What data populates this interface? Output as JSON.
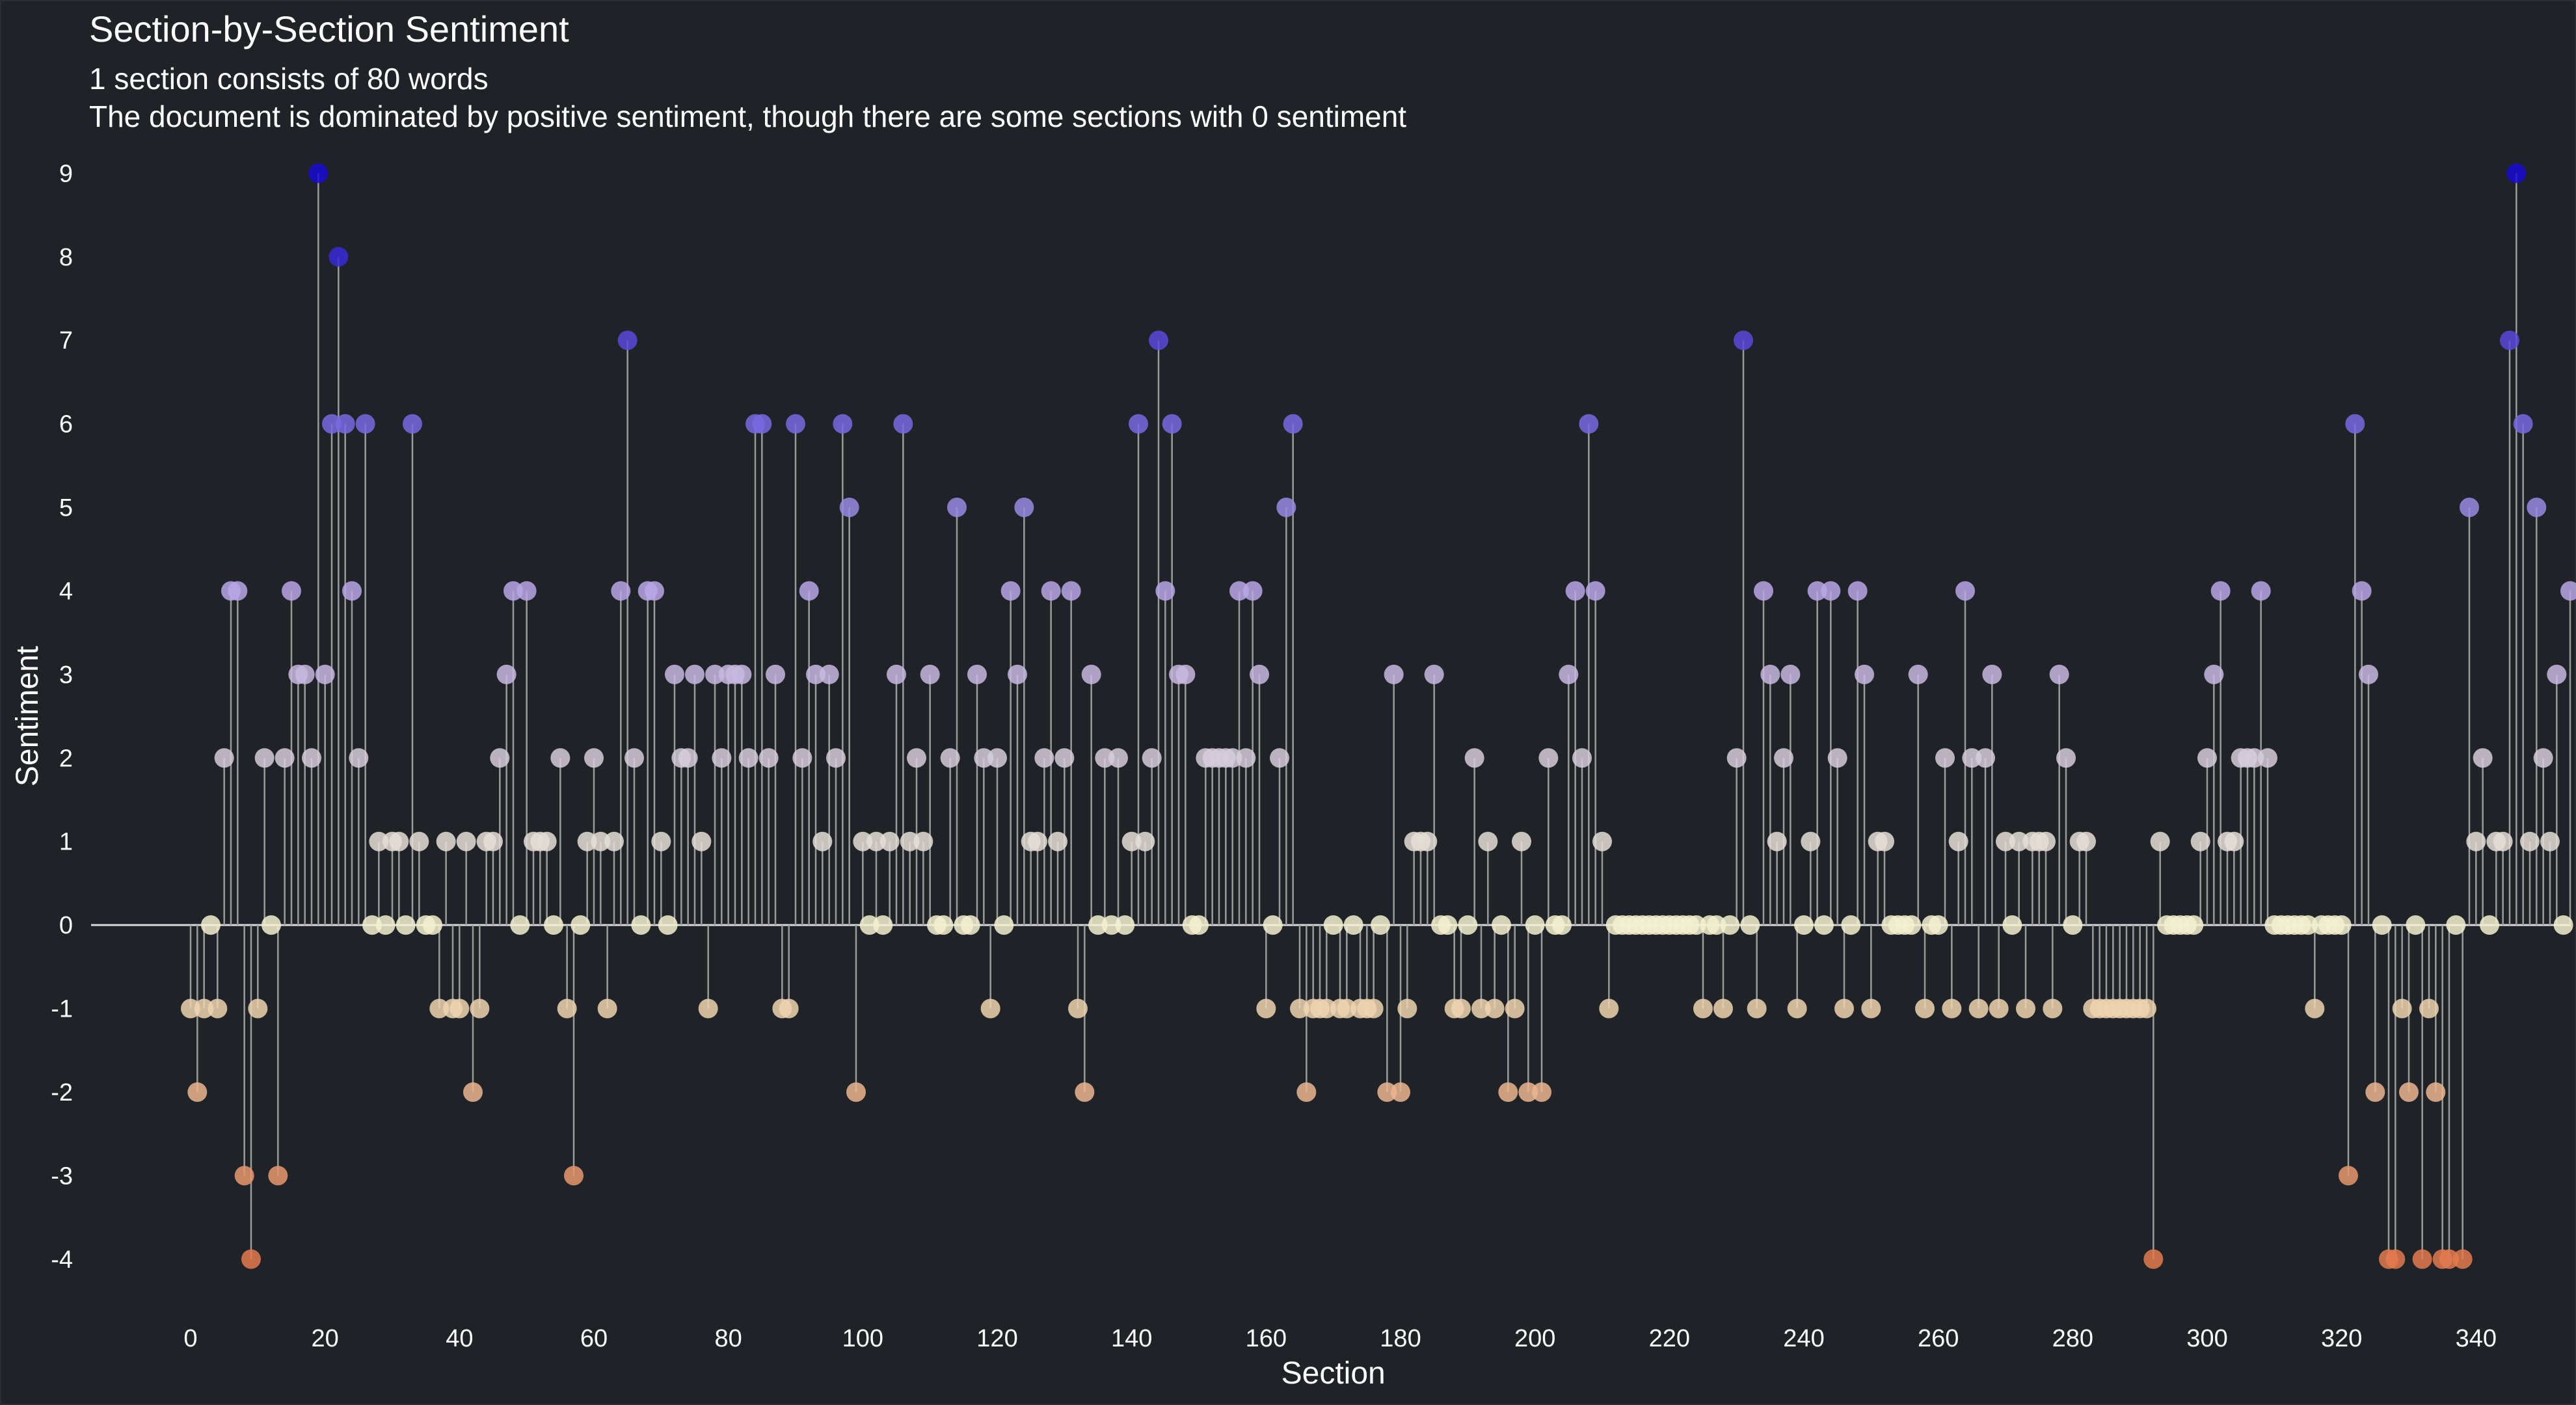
{
  "chart_data": {
    "type": "lollipop",
    "title": "Section-by-Section Sentiment",
    "subtitle_lines": [
      "1 section consists of 80 words",
      "The document is dominated by positive sentiment, though there are some sections with 0 sentiment"
    ],
    "xlabel": "Section",
    "ylabel": "Sentiment",
    "xlim": [
      -9,
      351
    ],
    "ylim": [
      -4.5,
      9.4
    ],
    "x_ticks": [
      0,
      20,
      40,
      60,
      80,
      100,
      120,
      140,
      160,
      180,
      200,
      220,
      240,
      260,
      280,
      300,
      320,
      340
    ],
    "y_ticks": [
      -4,
      -3,
      -2,
      -1,
      0,
      1,
      2,
      3,
      4,
      5,
      6,
      7,
      8,
      9
    ],
    "grid": false,
    "legend": "none",
    "colors": {
      "background": "#1f2226",
      "text": "#ffffff",
      "zero_line": "#d9d9d9",
      "stem": "#9a9a9a",
      "color_max": "#1a0ad6",
      "color_positive_low": "#b9a7e6",
      "color_zero": "#f3f0d0",
      "color_min": "#e37a4f"
    },
    "sentiment": [
      -1,
      -2,
      -1,
      0,
      -1,
      2,
      4,
      4,
      -3,
      -4,
      -1,
      2,
      0,
      -3,
      2,
      4,
      3,
      3,
      2,
      9,
      3,
      6,
      8,
      6,
      4,
      2,
      6,
      0,
      1,
      0,
      1,
      1,
      0,
      6,
      1,
      0,
      0,
      -1,
      1,
      -1,
      -1,
      1,
      -2,
      -1,
      1,
      1,
      2,
      3,
      4,
      0,
      4,
      1,
      1,
      1,
      0,
      2,
      -1,
      -3,
      0,
      1,
      2,
      1,
      -1,
      1,
      4,
      7,
      2,
      0,
      4,
      4,
      1,
      0,
      3,
      2,
      2,
      3,
      1,
      -1,
      3,
      2,
      3,
      3,
      3,
      2,
      6,
      6,
      2,
      3,
      -1,
      -1,
      6,
      2,
      4,
      3,
      1,
      3,
      2,
      6,
      5,
      -2,
      1,
      0,
      1,
      0,
      1,
      3,
      6,
      1,
      2,
      1,
      3,
      0,
      0,
      2,
      5,
      0,
      0,
      3,
      2,
      -1,
      2,
      0,
      4,
      3,
      5,
      1,
      1,
      2,
      4,
      1,
      2,
      4,
      -1,
      -2,
      3,
      0,
      2,
      0,
      2,
      0,
      1,
      6,
      1,
      2,
      7,
      4,
      6,
      3,
      3,
      0,
      0,
      2,
      2,
      2,
      2,
      2,
      4,
      2,
      4,
      3,
      -1,
      0,
      2,
      5,
      6,
      -1,
      -2,
      -1,
      -1,
      -1,
      0,
      -1,
      -1,
      0,
      -1,
      -1,
      -1,
      0,
      -2,
      3,
      -2,
      -1,
      1,
      1,
      1,
      3,
      0,
      0,
      -1,
      -1,
      0,
      2,
      -1,
      1,
      -1,
      0,
      -2,
      -1,
      1,
      -2,
      0,
      -2,
      2,
      0,
      0,
      3,
      4,
      2,
      6,
      4,
      1,
      -1,
      0,
      0,
      0,
      0,
      0,
      0,
      0,
      0,
      0,
      0,
      0,
      0,
      0,
      -1,
      0,
      0,
      -1,
      0,
      2,
      7,
      0,
      -1,
      4,
      3,
      1,
      2,
      3,
      -1,
      0,
      1,
      4,
      0,
      4,
      2,
      -1,
      0,
      4,
      3,
      -1,
      1,
      1,
      0,
      0,
      0,
      0,
      3,
      -1,
      0,
      0,
      2,
      -1,
      1,
      4,
      2,
      -1,
      2,
      3,
      -1,
      1,
      0,
      1,
      -1,
      1,
      1,
      1,
      -1,
      3,
      2,
      0,
      1,
      1,
      -1,
      -1,
      -1,
      -1,
      -1,
      -1,
      -1,
      -1,
      -1,
      -4,
      1,
      0,
      0,
      0,
      0,
      0,
      1,
      2,
      3,
      4,
      1,
      1,
      2,
      2,
      2,
      4,
      2,
      0,
      0,
      0,
      0,
      0,
      0,
      -1,
      0,
      0,
      0,
      0,
      -3,
      6,
      4,
      3,
      -2,
      0,
      -4,
      -4,
      -1,
      -2,
      0,
      -4,
      -1,
      -2,
      -4,
      -4,
      0,
      -4,
      5,
      1,
      2,
      0,
      1,
      1,
      7,
      9,
      6,
      1,
      5,
      2,
      1,
      3,
      0,
      4
    ]
  }
}
